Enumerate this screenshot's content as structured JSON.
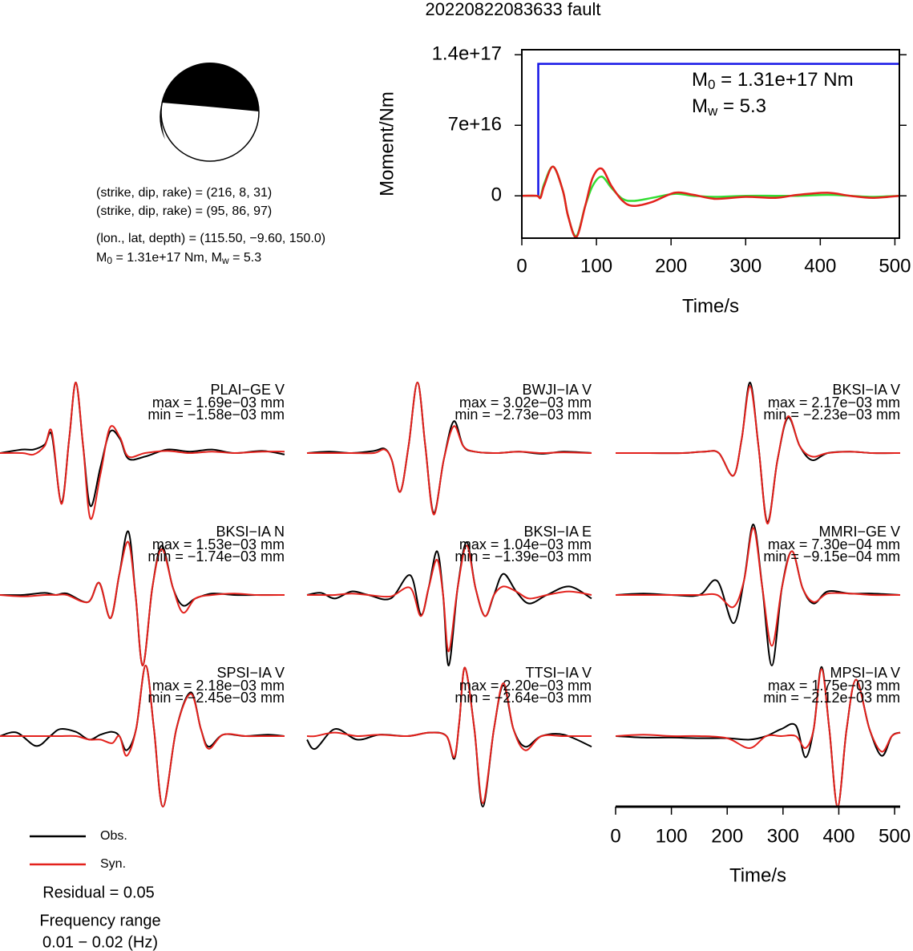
{
  "title": "20220822083633 fault",
  "info": {
    "lines": [
      "(strike, dip, rake) = (216, 8, 31)",
      "(strike, dip, rake) = (95, 86, 97)",
      "(lon., lat, depth) = (115.50, −9.60, 150.0)"
    ],
    "moment_line": [
      "M",
      "0",
      " = 1.31e+17 Nm, M",
      "w",
      " = 5.3"
    ]
  },
  "chart_data": [
    {
      "type": "line",
      "ylabel": "Moment/Nm",
      "xlabel": "Time/s",
      "xlim": [
        0,
        506
      ],
      "xticks": [
        0,
        100,
        200,
        300,
        400,
        500
      ],
      "ylim": [
        -4.2e+16,
        1.45e+17
      ],
      "yticks": [
        0,
        {
          "value": 7e+16,
          "label": "7e+16"
        },
        {
          "value": 1.4e+17,
          "label": "1.4e+17"
        }
      ],
      "grid": false,
      "annotations": [
        [
          "M",
          "0",
          " = 1.31e+17 Nm"
        ],
        [
          "M",
          "w",
          " = 5.3"
        ]
      ],
      "series": [
        {
          "color": "#1414e6",
          "smooth": false,
          "x": [
            0,
            22,
            22,
            506
          ],
          "values": [
            0,
            0,
            1.31e+17,
            1.31e+17
          ]
        },
        {
          "color": "#33dd33",
          "smooth": true,
          "x": [
            0,
            20,
            25,
            30,
            42,
            55,
            62,
            73,
            85,
            95,
            107,
            120,
            135,
            150,
            175,
            205,
            230,
            260,
            300,
            340,
            370,
            410,
            440,
            470,
            506
          ],
          "values": [
            0,
            0,
            -1000000000000000.0,
            1.2e+16,
            2.9e+16,
            5000000000000000.0,
            -2e+16,
            -4e+16,
            -1e+16,
            1e+16,
            1.9e+16,
            8000000000000000.0,
            -3000000000000000.0,
            -5000000000000000.0,
            -2000000000000000.0,
            2000000000000000.0,
            0,
            -1000000000000000.0,
            0,
            0,
            0,
            1000000000000000.0,
            0,
            -1000000000000000.0,
            0
          ]
        },
        {
          "color": "#e3211c",
          "smooth": true,
          "x": [
            0,
            20,
            25,
            30,
            42,
            55,
            62,
            73,
            85,
            95,
            107,
            120,
            135,
            150,
            175,
            205,
            230,
            260,
            300,
            340,
            370,
            410,
            440,
            470,
            506
          ],
          "values": [
            0,
            0,
            -2000000000000000.0,
            1e+16,
            2.9e+16,
            5000000000000000.0,
            -2e+16,
            -4.1e+16,
            -1e+16,
            1.8e+16,
            2.7e+16,
            1e+16,
            -5000000000000000.0,
            -1e+16,
            -6000000000000000.0,
            3000000000000000.0,
            1000000000000000.0,
            -3000000000000000.0,
            -1000000000000000.0,
            -2000000000000000.0,
            1000000000000000.0,
            3000000000000000.0,
            0,
            -2000000000000000.0,
            0
          ]
        }
      ]
    },
    {
      "type": "waveform",
      "xlabel": "Time/s",
      "xlim": [
        0,
        510
      ],
      "xticks": [
        0,
        100,
        200,
        300,
        400,
        500
      ],
      "series": [
        {
          "name": "Obs.",
          "color": "#000000"
        },
        {
          "name": "Syn.",
          "color": "#e3211c"
        }
      ],
      "panels": [
        {
          "name": "PLAI−GE V",
          "max": "max = 1.69e−03 mm",
          "min": "min = −1.58e−03 mm",
          "x": [
            0,
            40,
            60,
            80,
            93,
            110,
            124,
            136,
            149,
            162,
            180,
            197,
            215,
            230,
            260,
            300,
            340,
            380,
            420,
            470,
            510
          ],
          "values": [
            [
              0,
              0.05,
              0.05,
              0.12,
              0.25,
              -0.7,
              0.2,
              1.0,
              0.1,
              -0.75,
              -0.2,
              0.3,
              0.2,
              -0.08,
              -0.05,
              0.05,
              0.02,
              0.05,
              0,
              0.03,
              -0.02
            ],
            [
              0,
              0,
              -0.02,
              0.1,
              0.3,
              -0.72,
              0.2,
              1.0,
              0.1,
              -0.93,
              -0.3,
              0.36,
              0.22,
              -0.05,
              0,
              0.03,
              0,
              0.02,
              0,
              0.02,
              0.02
            ]
          ]
        },
        {
          "name": "BWJI−IA V",
          "max": "max = 3.02e−03 mm",
          "min": "min = −2.73e−03 mm",
          "x": [
            0,
            40,
            80,
            120,
            139,
            152,
            167,
            182,
            198,
            212,
            227,
            245,
            263,
            280,
            300,
            340,
            380,
            420,
            460,
            510
          ],
          "values": [
            [
              0,
              0.02,
              0,
              0.03,
              0.06,
              -0.1,
              -0.55,
              0.1,
              1.0,
              0.1,
              -0.85,
              -0.1,
              0.45,
              0.1,
              0.02,
              0,
              0.02,
              -0.01,
              0.02,
              0
            ],
            [
              0,
              0,
              0,
              0,
              0.05,
              -0.1,
              -0.55,
              0.1,
              1.0,
              0.1,
              -0.87,
              -0.1,
              0.38,
              0.1,
              0.02,
              0,
              0.02,
              0,
              0.01,
              0
            ]
          ]
        },
        {
          "name": "BKSI−IA V",
          "max": "max = 2.17e−03 mm",
          "min": "min = −2.23e−03 mm",
          "x": [
            0,
            60,
            120,
            160,
            185,
            211,
            226,
            241,
            256,
            272,
            290,
            309,
            330,
            352,
            380,
            420,
            460,
            510
          ],
          "values": [
            [
              0,
              0,
              0,
              0.02,
              0,
              -0.32,
              0.2,
              1.0,
              0.1,
              -0.98,
              -0.1,
              0.5,
              0.1,
              -0.1,
              0,
              0.02,
              0,
              0
            ],
            [
              0,
              0,
              0,
              0.02,
              0,
              -0.32,
              0.2,
              0.95,
              0.1,
              -1.0,
              -0.1,
              0.52,
              0.1,
              -0.05,
              0,
              0.02,
              0,
              0
            ]
          ]
        },
        {
          "name": "BKSI−IA N",
          "max": "max = 1.53e−03 mm",
          "min": "min = −1.74e−03 mm",
          "x": [
            0,
            40,
            80,
            100,
            120,
            158,
            178,
            198,
            214,
            230,
            243,
            256,
            273,
            290,
            310,
            328,
            350,
            380,
            420,
            460,
            510
          ],
          "values": [
            [
              0,
              0,
              0.03,
              0,
              0.02,
              -0.1,
              0.17,
              -0.33,
              0.3,
              0.9,
              0,
              -1.0,
              0.1,
              0.7,
              0.1,
              -0.15,
              -0.05,
              0.02,
              0,
              0,
              0
            ],
            [
              0,
              -0.02,
              0,
              0,
              0,
              -0.1,
              0.17,
              -0.33,
              0.3,
              0.75,
              0,
              -1.0,
              0.1,
              0.65,
              0.1,
              -0.25,
              -0.05,
              0,
              0.02,
              0,
              0
            ]
          ]
        },
        {
          "name": "BKSI−IA E",
          "max": "max = 1.04e−03 mm",
          "min": "min = −1.39e−03 mm",
          "x": [
            0,
            25,
            50,
            80,
            110,
            150,
            185,
            204,
            218,
            233,
            244,
            254,
            270,
            286,
            302,
            319,
            335,
            352,
            375,
            398,
            430,
            470,
            510
          ],
          "values": [
            [
              0,
              0.03,
              -0.05,
              0.05,
              0,
              -0.05,
              0.28,
              -0.28,
              0.1,
              0.62,
              0,
              -1.0,
              0.1,
              0.75,
              0.1,
              -0.3,
              0,
              0.3,
              0.05,
              -0.12,
              0,
              0.12,
              -0.05
            ],
            [
              0,
              0,
              0,
              0.02,
              0,
              -0.02,
              0.1,
              -0.3,
              0.1,
              0.5,
              0,
              -0.8,
              0.1,
              0.7,
              0.1,
              -0.3,
              0,
              0.12,
              0.05,
              -0.05,
              0,
              0.05,
              0
            ]
          ]
        },
        {
          "name": "MMRI−GE V",
          "max": "max = 7.30e−04 mm",
          "min": "min = −9.15e−04 mm",
          "x": [
            0,
            50,
            100,
            150,
            182,
            211,
            230,
            247,
            263,
            280,
            298,
            316,
            335,
            355,
            380,
            420,
            460,
            510
          ],
          "values": [
            [
              0,
              0.02,
              0,
              0,
              0.2,
              -0.4,
              0.2,
              1.0,
              0.1,
              -1.0,
              0.1,
              0.62,
              0.1,
              -0.12,
              0.05,
              0.02,
              0.02,
              0
            ],
            [
              0,
              0,
              0,
              0,
              0,
              -0.17,
              0.2,
              0.95,
              0.1,
              -0.72,
              0.1,
              0.62,
              0.1,
              -0.1,
              0.02,
              0.02,
              0,
              0
            ]
          ]
        },
        {
          "name": "SPSI−IA V",
          "max": "max = 2.18e−03 mm",
          "min": "min = −2.45e−03 mm",
          "x": [
            0,
            30,
            65,
            90,
            108,
            136,
            160,
            180,
            201,
            214,
            227,
            244,
            261,
            276,
            292,
            316,
            342,
            360,
            374,
            400,
            440,
            480,
            510
          ],
          "values": [
            [
              0,
              0.05,
              -0.14,
              0,
              0.1,
              0.06,
              -0.05,
              0.02,
              0.06,
              0,
              -0.2,
              0.1,
              1.0,
              0.1,
              -1.0,
              0.1,
              0.62,
              0.1,
              -0.15,
              0.02,
              0,
              0.02,
              0
            ],
            [
              0,
              0,
              0,
              0,
              0,
              0,
              -0.05,
              -0.05,
              -0.1,
              0,
              -0.28,
              0.1,
              1.0,
              0.1,
              -1.0,
              0.1,
              0.6,
              0.1,
              -0.18,
              0.02,
              0,
              0,
              0
            ]
          ]
        },
        {
          "name": "TTSI−IA V",
          "max": "max = 2.20e−03 mm",
          "min": "min = −2.64e−03 mm",
          "x": [
            0,
            15,
            50,
            90,
            130,
            180,
            220,
            250,
            264,
            273,
            283,
            300,
            315,
            335,
            352,
            370,
            391,
            420,
            460,
            510
          ],
          "values": [
            [
              -0.05,
              -0.18,
              0.1,
              -0.05,
              0.02,
              0,
              0.05,
              0,
              -0.32,
              0.2,
              0.97,
              0.1,
              -1.0,
              0.1,
              0.72,
              0.1,
              -0.15,
              0,
              0.02,
              -0.15
            ],
            [
              0,
              0,
              0.05,
              0,
              0.02,
              0,
              0.05,
              0,
              -0.3,
              0.2,
              0.97,
              0.1,
              -0.95,
              0.1,
              0.75,
              0.1,
              -0.2,
              0,
              0,
              0
            ]
          ]
        },
        {
          "name": "MPSI−IA V",
          "max": "max = 1.75e−03 mm",
          "min": "min = −2.12e−03 mm",
          "x": [
            0,
            50,
            100,
            150,
            200,
            240,
            270,
            297,
            323,
            340,
            355,
            369,
            383,
            398,
            414,
            431,
            455,
            477,
            495,
            510
          ],
          "values": [
            [
              0,
              -0.02,
              -0.02,
              -0.03,
              -0.03,
              -0.05,
              0,
              0.1,
              0.15,
              -0.3,
              0.1,
              0.98,
              0.1,
              -1.0,
              0.1,
              0.8,
              0.1,
              -0.28,
              0,
              0.05
            ],
            [
              0,
              0.02,
              0,
              0,
              -0.03,
              -0.17,
              0,
              0,
              0,
              -0.17,
              0.1,
              0.95,
              0.1,
              -1.0,
              0.1,
              0.8,
              0.1,
              -0.22,
              0,
              0.05
            ]
          ]
        }
      ]
    }
  ],
  "notes": {
    "residual": "Residual = 0.05",
    "frequency_title": "Frequency range",
    "frequency": "0.01 − 0.02 (Hz)"
  }
}
